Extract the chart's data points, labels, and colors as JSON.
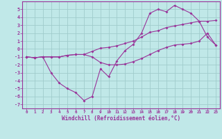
{
  "xlabel": "Windchill (Refroidissement éolien,°C)",
  "background_color": "#c0e8e8",
  "grid_color": "#a0cccc",
  "line_color": "#993399",
  "xlim": [
    -0.5,
    23.5
  ],
  "ylim": [
    -7.5,
    6.0
  ],
  "xticks": [
    0,
    1,
    2,
    3,
    4,
    5,
    6,
    7,
    8,
    9,
    10,
    11,
    12,
    13,
    14,
    15,
    16,
    17,
    18,
    19,
    20,
    21,
    22,
    23
  ],
  "yticks": [
    -7,
    -6,
    -5,
    -4,
    -3,
    -2,
    -1,
    0,
    1,
    2,
    3,
    4,
    5
  ],
  "line1_x": [
    0,
    1,
    2,
    3,
    4,
    5,
    6,
    7,
    8,
    9,
    10,
    11,
    12,
    13,
    14,
    15,
    16,
    17,
    18,
    19,
    20,
    21,
    22,
    23
  ],
  "line1_y": [
    -1.0,
    -1.1,
    -1.0,
    -1.0,
    -1.0,
    -0.8,
    -0.7,
    -0.7,
    -0.3,
    0.1,
    0.2,
    0.4,
    0.7,
    1.0,
    1.5,
    2.1,
    2.3,
    2.7,
    2.9,
    3.1,
    3.3,
    3.5,
    3.5,
    3.6
  ],
  "line2_x": [
    0,
    1,
    2,
    3,
    4,
    5,
    6,
    7,
    8,
    9,
    10,
    11,
    12,
    13,
    14,
    15,
    16,
    17,
    18,
    19,
    20,
    21,
    22,
    23
  ],
  "line2_y": [
    -1.0,
    -1.1,
    -1.0,
    -3.0,
    -4.3,
    -5.0,
    -5.5,
    -6.5,
    -6.0,
    -2.5,
    -3.5,
    -1.5,
    -0.2,
    0.6,
    2.0,
    4.5,
    5.0,
    4.7,
    5.5,
    5.0,
    4.5,
    3.5,
    1.5,
    0.5
  ],
  "line3_x": [
    0,
    1,
    2,
    3,
    4,
    5,
    6,
    7,
    8,
    9,
    10,
    11,
    12,
    13,
    14,
    15,
    16,
    17,
    18,
    19,
    20,
    21,
    22,
    23
  ],
  "line3_y": [
    -1.0,
    -1.1,
    -1.0,
    -1.0,
    -1.0,
    -0.8,
    -0.7,
    -0.7,
    -1.0,
    -1.7,
    -2.0,
    -2.0,
    -1.9,
    -1.6,
    -1.2,
    -0.7,
    -0.2,
    0.2,
    0.5,
    0.6,
    0.7,
    1.0,
    2.0,
    0.5
  ]
}
